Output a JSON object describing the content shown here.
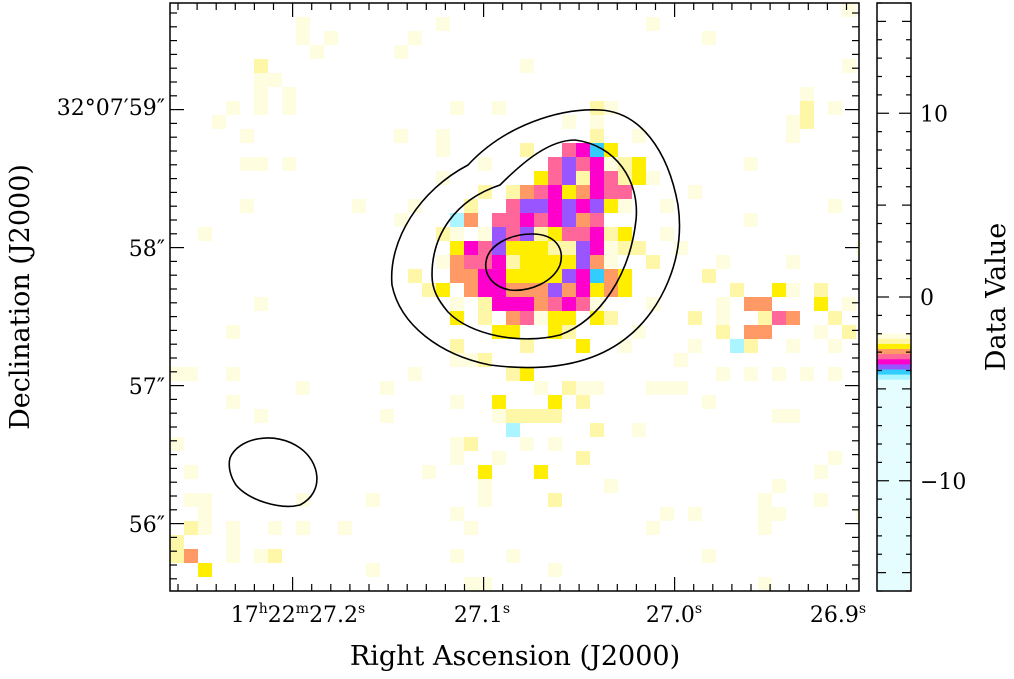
{
  "chart_data": {
    "type": "heatmap",
    "xlabel": "Right Ascension (J2000)",
    "ylabel": "Declination (J2000)",
    "x_ticks": [
      {
        "label": "17h22m27.2s",
        "parts": [
          "17",
          "h",
          "22",
          "m",
          "27.2",
          "s"
        ]
      },
      {
        "label": "27.1s",
        "parts": [
          "27.1",
          "s"
        ]
      },
      {
        "label": "27.0s",
        "parts": [
          "27.0",
          "s"
        ]
      },
      {
        "label": "26.9s",
        "parts": [
          "26.9",
          "s"
        ]
      }
    ],
    "y_ticks": [
      {
        "label": "32°07′59″",
        "text": "32°07′59″"
      },
      {
        "label": "58″",
        "text": "58″"
      },
      {
        "label": "57″",
        "text": "57″"
      },
      {
        "label": "56″",
        "text": "56″"
      }
    ],
    "grid": false,
    "contours": "3 closed black contours around emission peak; 1 beam ellipse lower-left",
    "colorbar": {
      "label": "Data Value",
      "range": [
        -16,
        16
      ],
      "ticks": [
        10,
        0,
        -10
      ],
      "tick_labels": [
        "10",
        "0",
        "−10"
      ],
      "position": "right"
    },
    "colors": {
      "palette": [
        "#fffde0",
        "#fff7a8",
        "#ffee00",
        "#ff9966",
        "#ff6699",
        "#ff00cc",
        "#9955ff",
        "#33ccff",
        "#aaf5ff",
        "#e6fdff"
      ],
      "background": "#ffffff",
      "contour": "#000000"
    }
  }
}
